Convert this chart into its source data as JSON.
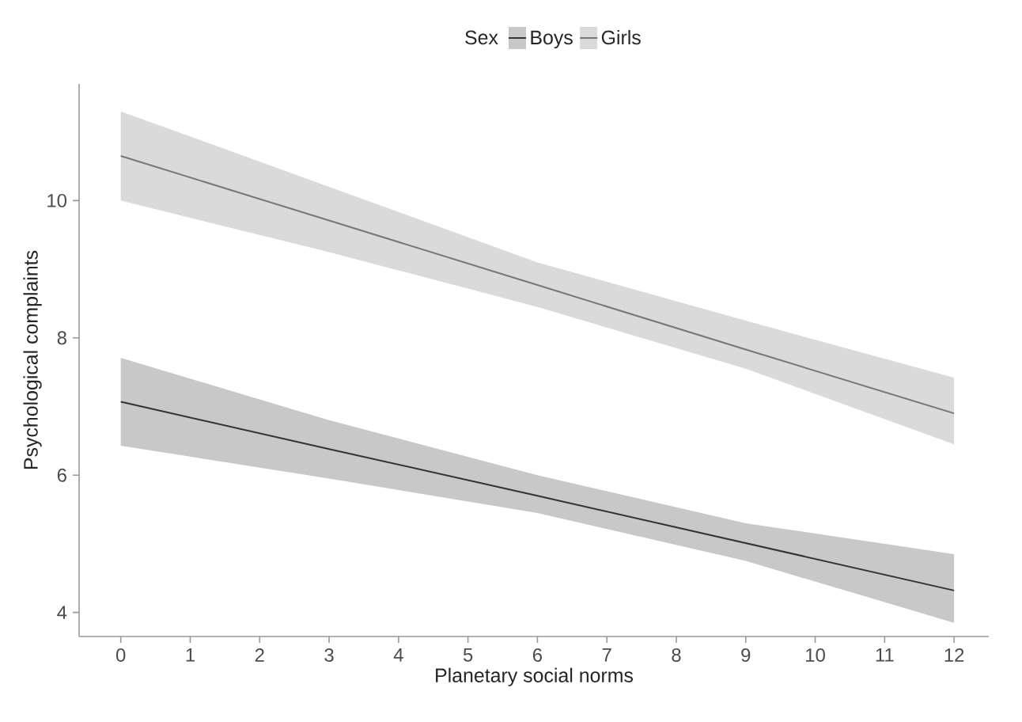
{
  "chart_data": {
    "type": "line",
    "xlabel": "Planetary social norms",
    "ylabel": "Psychological complaints",
    "legend_title": "Sex",
    "legend": "top",
    "grid": false,
    "marker": "none",
    "line_style": "solid",
    "xlim": [
      -0.6,
      12.5
    ],
    "ylim": [
      3.65,
      11.7
    ],
    "xticks": [
      0,
      1,
      2,
      3,
      4,
      5,
      6,
      7,
      8,
      9,
      10,
      11,
      12
    ],
    "yticks": [
      4,
      6,
      8,
      10
    ],
    "series": [
      {
        "name": "Boys",
        "color": "#333333",
        "x": [
          0,
          3,
          6,
          9,
          12
        ],
        "values": [
          7.07,
          6.38,
          5.7,
          5.01,
          4.32
        ],
        "lower": [
          6.43,
          5.95,
          5.45,
          4.75,
          3.85
        ],
        "upper": [
          7.71,
          6.8,
          6.0,
          5.3,
          4.85
        ]
      },
      {
        "name": "Girls",
        "color": "#777777",
        "x": [
          0,
          3,
          6,
          9,
          12
        ],
        "values": [
          10.65,
          9.71,
          8.77,
          7.83,
          6.9
        ],
        "lower": [
          10.0,
          9.25,
          8.45,
          7.55,
          6.45
        ],
        "upper": [
          11.3,
          10.2,
          9.1,
          8.25,
          7.42
        ]
      }
    ]
  }
}
